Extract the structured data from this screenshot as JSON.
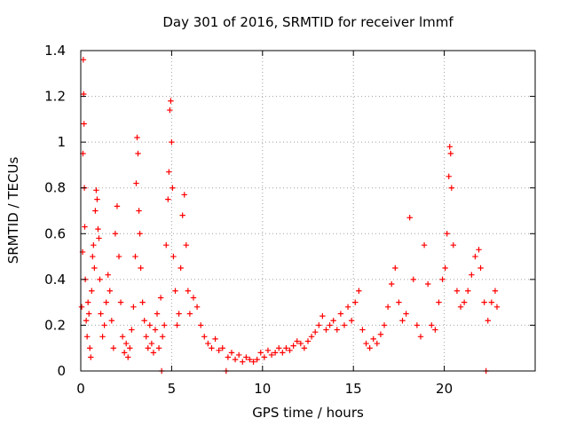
{
  "chart_data": {
    "type": "scatter",
    "title": "Day 301 of 2016, SRMTID for receiver lmmf",
    "xlabel": "GPS time / hours",
    "ylabel": "SRMTID / TECUs",
    "xlim": [
      0,
      25
    ],
    "ylim": [
      0,
      1.4
    ],
    "grid": true,
    "marker": "plus",
    "color": "#ff0000",
    "x_ticks": [
      0,
      5,
      10,
      15,
      20
    ],
    "y_ticks": [
      0,
      0.2,
      0.4,
      0.6,
      0.8,
      1,
      1.2,
      1.4
    ],
    "x_tick_labels": [
      "0",
      "5",
      "10",
      "15",
      "20"
    ],
    "y_tick_labels": [
      "0",
      "0.2",
      "0.4",
      "0.6",
      "0.8",
      "1",
      "1.2",
      "1.4"
    ],
    "series": [
      {
        "name": "SRMTID",
        "points": [
          [
            0.05,
            0.28
          ],
          [
            0.1,
            0.52
          ],
          [
            0.12,
            0.95
          ],
          [
            0.14,
            1.36
          ],
          [
            0.16,
            1.21
          ],
          [
            0.18,
            1.08
          ],
          [
            0.2,
            0.8
          ],
          [
            0.22,
            0.63
          ],
          [
            0.25,
            0.4
          ],
          [
            0.3,
            0.22
          ],
          [
            0.35,
            0.15
          ],
          [
            0.4,
            0.3
          ],
          [
            0.45,
            0.25
          ],
          [
            0.5,
            0.1
          ],
          [
            0.55,
            0.06
          ],
          [
            0.6,
            0.35
          ],
          [
            0.65,
            0.5
          ],
          [
            0.7,
            0.55
          ],
          [
            0.75,
            0.45
          ],
          [
            0.8,
            0.7
          ],
          [
            0.85,
            0.79
          ],
          [
            0.9,
            0.75
          ],
          [
            0.95,
            0.62
          ],
          [
            1.0,
            0.58
          ],
          [
            1.05,
            0.4
          ],
          [
            1.1,
            0.25
          ],
          [
            1.2,
            0.15
          ],
          [
            1.3,
            0.2
          ],
          [
            1.4,
            0.3
          ],
          [
            1.5,
            0.42
          ],
          [
            1.6,
            0.35
          ],
          [
            1.7,
            0.22
          ],
          [
            1.8,
            0.1
          ],
          [
            1.9,
            0.6
          ],
          [
            2.0,
            0.72
          ],
          [
            2.1,
            0.5
          ],
          [
            2.2,
            0.3
          ],
          [
            2.3,
            0.15
          ],
          [
            2.4,
            0.08
          ],
          [
            2.5,
            0.12
          ],
          [
            2.6,
            0.06
          ],
          [
            2.7,
            0.1
          ],
          [
            2.8,
            0.18
          ],
          [
            2.9,
            0.28
          ],
          [
            3.0,
            0.5
          ],
          [
            3.05,
            0.82
          ],
          [
            3.1,
            1.02
          ],
          [
            3.15,
            0.95
          ],
          [
            3.2,
            0.7
          ],
          [
            3.25,
            0.6
          ],
          [
            3.3,
            0.45
          ],
          [
            3.4,
            0.3
          ],
          [
            3.5,
            0.22
          ],
          [
            3.6,
            0.15
          ],
          [
            3.7,
            0.1
          ],
          [
            3.8,
            0.2
          ],
          [
            3.9,
            0.12
          ],
          [
            4.0,
            0.08
          ],
          [
            4.1,
            0.18
          ],
          [
            4.2,
            0.25
          ],
          [
            4.3,
            0.1
          ],
          [
            4.4,
            0.32
          ],
          [
            4.45,
            0.0
          ],
          [
            4.5,
            0.15
          ],
          [
            4.6,
            0.2
          ],
          [
            4.7,
            0.55
          ],
          [
            4.8,
            0.75
          ],
          [
            4.85,
            0.87
          ],
          [
            4.9,
            1.14
          ],
          [
            4.95,
            1.18
          ],
          [
            5.0,
            1.0
          ],
          [
            5.05,
            0.8
          ],
          [
            5.1,
            0.5
          ],
          [
            5.2,
            0.35
          ],
          [
            5.3,
            0.2
          ],
          [
            5.4,
            0.25
          ],
          [
            5.5,
            0.45
          ],
          [
            5.6,
            0.68
          ],
          [
            5.7,
            0.77
          ],
          [
            5.8,
            0.55
          ],
          [
            5.9,
            0.35
          ],
          [
            6.0,
            0.25
          ],
          [
            6.2,
            0.32
          ],
          [
            6.4,
            0.28
          ],
          [
            6.6,
            0.2
          ],
          [
            6.8,
            0.15
          ],
          [
            7.0,
            0.12
          ],
          [
            7.2,
            0.1
          ],
          [
            7.4,
            0.14
          ],
          [
            7.6,
            0.09
          ],
          [
            7.8,
            0.1
          ],
          [
            8.0,
            0.0
          ],
          [
            8.1,
            0.06
          ],
          [
            8.3,
            0.08
          ],
          [
            8.5,
            0.05
          ],
          [
            8.7,
            0.07
          ],
          [
            8.9,
            0.04
          ],
          [
            9.1,
            0.06
          ],
          [
            9.3,
            0.05
          ],
          [
            9.5,
            0.04
          ],
          [
            9.7,
            0.05
          ],
          [
            9.9,
            0.08
          ],
          [
            10.1,
            0.06
          ],
          [
            10.3,
            0.09
          ],
          [
            10.5,
            0.07
          ],
          [
            10.7,
            0.08
          ],
          [
            10.9,
            0.1
          ],
          [
            11.1,
            0.08
          ],
          [
            11.3,
            0.1
          ],
          [
            11.5,
            0.09
          ],
          [
            11.7,
            0.11
          ],
          [
            11.9,
            0.13
          ],
          [
            12.1,
            0.12
          ],
          [
            12.3,
            0.1
          ],
          [
            12.5,
            0.13
          ],
          [
            12.7,
            0.15
          ],
          [
            12.9,
            0.17
          ],
          [
            13.1,
            0.2
          ],
          [
            13.3,
            0.24
          ],
          [
            13.5,
            0.18
          ],
          [
            13.7,
            0.2
          ],
          [
            13.9,
            0.22
          ],
          [
            14.1,
            0.18
          ],
          [
            14.3,
            0.25
          ],
          [
            14.5,
            0.2
          ],
          [
            14.7,
            0.28
          ],
          [
            14.9,
            0.22
          ],
          [
            15.1,
            0.3
          ],
          [
            15.3,
            0.35
          ],
          [
            15.5,
            0.18
          ],
          [
            15.7,
            0.12
          ],
          [
            15.9,
            0.1
          ],
          [
            16.1,
            0.14
          ],
          [
            16.3,
            0.12
          ],
          [
            16.5,
            0.16
          ],
          [
            16.7,
            0.2
          ],
          [
            16.9,
            0.28
          ],
          [
            17.1,
            0.38
          ],
          [
            17.3,
            0.45
          ],
          [
            17.5,
            0.3
          ],
          [
            17.7,
            0.22
          ],
          [
            17.9,
            0.25
          ],
          [
            18.1,
            0.67
          ],
          [
            18.3,
            0.4
          ],
          [
            18.5,
            0.2
          ],
          [
            18.7,
            0.15
          ],
          [
            18.9,
            0.55
          ],
          [
            19.1,
            0.38
          ],
          [
            19.3,
            0.2
          ],
          [
            19.5,
            0.18
          ],
          [
            19.7,
            0.3
          ],
          [
            19.9,
            0.4
          ],
          [
            20.05,
            0.45
          ],
          [
            20.15,
            0.6
          ],
          [
            20.25,
            0.85
          ],
          [
            20.3,
            0.98
          ],
          [
            20.35,
            0.95
          ],
          [
            20.4,
            0.8
          ],
          [
            20.5,
            0.55
          ],
          [
            20.7,
            0.35
          ],
          [
            20.9,
            0.28
          ],
          [
            21.1,
            0.3
          ],
          [
            21.3,
            0.35
          ],
          [
            21.5,
            0.42
          ],
          [
            21.7,
            0.5
          ],
          [
            21.9,
            0.53
          ],
          [
            22.0,
            0.45
          ],
          [
            22.2,
            0.3
          ],
          [
            22.3,
            0.0
          ],
          [
            22.4,
            0.22
          ],
          [
            22.6,
            0.3
          ],
          [
            22.8,
            0.35
          ],
          [
            22.9,
            0.28
          ]
        ]
      }
    ]
  }
}
